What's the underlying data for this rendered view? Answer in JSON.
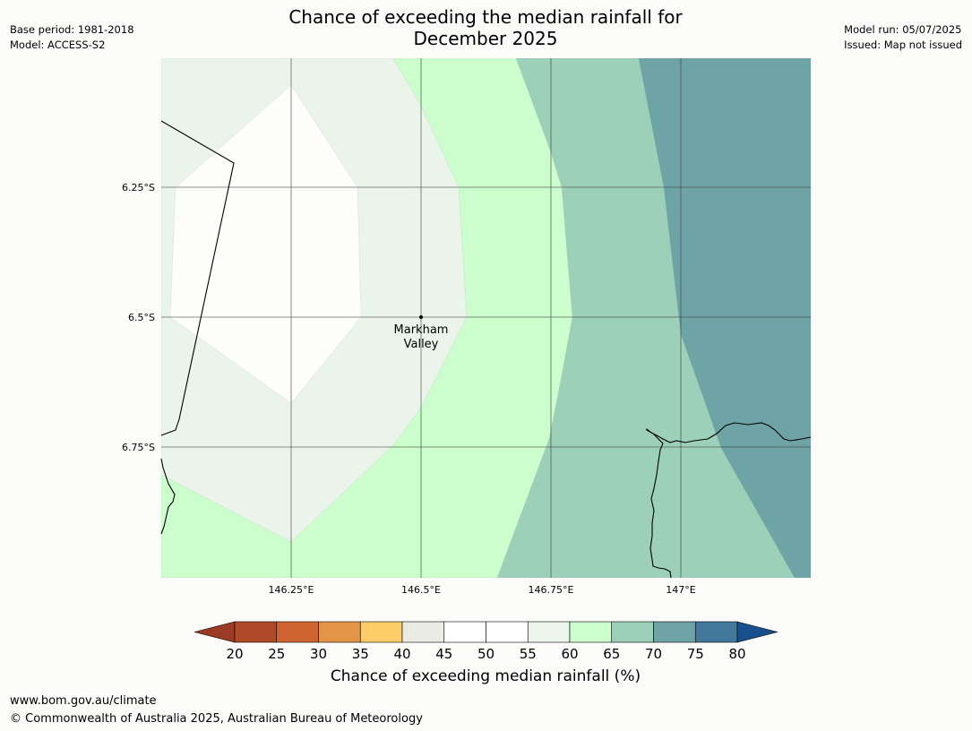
{
  "title": {
    "line1": "Chance of exceeding the median rainfall for",
    "line2": "December 2025"
  },
  "meta_left": {
    "base_period": "Base period: 1981-2018",
    "model": "Model: ACCESS-S2"
  },
  "meta_right": {
    "model_run": "Model run: 05/07/2025",
    "issued": "Issued: Map not issued"
  },
  "map": {
    "lat_labels": [
      "6.25°S",
      "6.5°S",
      "6.75°S"
    ],
    "lon_labels": [
      "146.25°E",
      "146.5°E",
      "146.75°E",
      "147°E"
    ],
    "place": {
      "name_line1": "Markham",
      "name_line2": "Valley"
    }
  },
  "colorbar": {
    "title": "Chance of exceeding median rainfall (%)",
    "ticks": [
      "20",
      "25",
      "30",
      "35",
      "40",
      "45",
      "50",
      "55",
      "60",
      "65",
      "70",
      "75",
      "80"
    ],
    "colors": [
      "#b04a28",
      "#cf6433",
      "#e39547",
      "#fdce68",
      "#ebebe6",
      "#ffffff",
      "#ffffff",
      "#ecf5ec",
      "#ccfdcc",
      "#9dd0b8",
      "#6fa4a6",
      "#43789c"
    ],
    "under_color": "#9b3b26",
    "over_color": "#17508d"
  },
  "zone_colors": {
    "white": "#fdfefb",
    "light": "#eaf4ea",
    "green": "#ccfdcc",
    "teal": "#9dd0b8",
    "darkteal": "#6fa4a6"
  },
  "footer": {
    "url": "www.bom.gov.au/climate",
    "copyright": "© Commonwealth of Australia 2025, Australian Bureau of Meteorology"
  }
}
